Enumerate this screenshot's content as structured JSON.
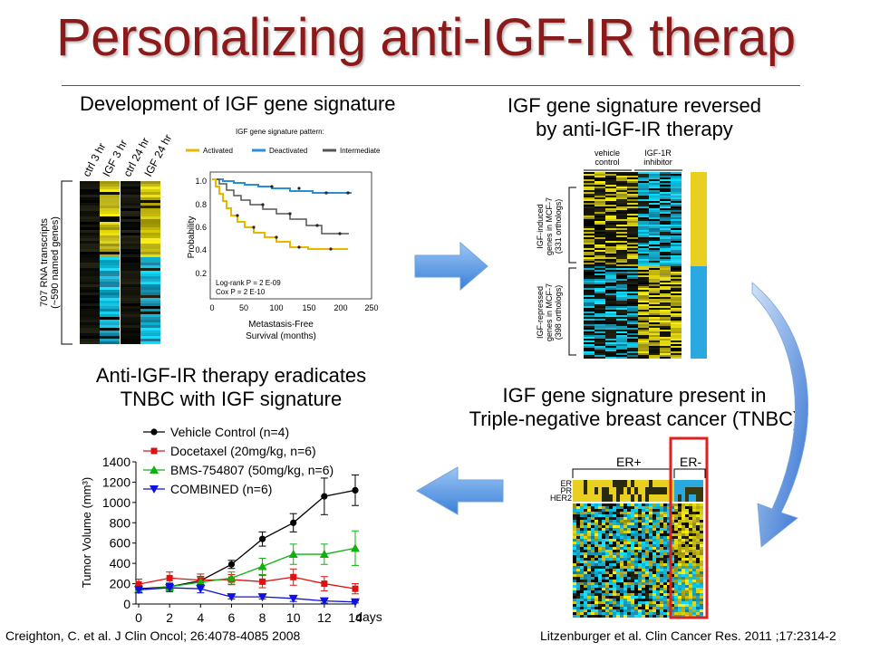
{
  "slide": {
    "title": "Personalizing anti-IGF-IR therap",
    "q1_caption": "Development of IGF gene signature",
    "q2_caption_line1": "IGF gene signature reversed",
    "q2_caption_line2": "by anti-IGF-IR therapy",
    "q3_caption_line1": "IGF gene signature present in",
    "q3_caption_line2": "Triple-negative breast cancer (TNBC)",
    "q4_caption_line1": "Anti-IGF-IR therapy eradicates",
    "q4_caption_line2": "TNBC with IGF signature",
    "citation_left": "Creighton, C. et al. J Clin Oncol; 26:4078-4085 2008",
    "citation_right": "Litzenburger et al. Clin Cancer Res. 2011 ;17:2314-2"
  },
  "heatmap1": {
    "column_labels": [
      "ctrl 3 hr",
      "IGF 3 hr",
      "ctrl 24 hr",
      "IGF 24 hr"
    ],
    "row_label_line1": "707 RNA transcripts",
    "row_label_line2": "(~590 named genes)"
  },
  "survival": {
    "legend_title": "IGF gene signature pattern:",
    "legend_items": [
      "Activated",
      "Deactivated",
      "Intermediate"
    ],
    "colors": {
      "activated": "#e8b800",
      "deactivated": "#2a8fd6",
      "intermediate": "#555555"
    },
    "ylabel": "Probability",
    "xlabel_line1": "Metastasis-Free",
    "xlabel_line2": "Survival (months)",
    "y_ticks": [
      "1.0",
      "0.8",
      "0.6",
      "0.4",
      "0.2"
    ],
    "x_ticks": [
      "0",
      "50",
      "100",
      "150",
      "200",
      "250"
    ],
    "stat_line1": "Log-rank P = 2 E-09",
    "stat_line2": "Cox P = 2 E-10"
  },
  "heatmap2": {
    "header_vehicle_line1": "vehicle",
    "header_vehicle_line2": "control",
    "header_inhibitor_line1": "IGF-1R",
    "header_inhibitor_line2": "inhibitor",
    "induced_line1": "IGF-induced",
    "induced_line2": "genes in MCF-7",
    "induced_line3": "(331 orthologs)",
    "repressed_line1": "IGF-repressed",
    "repressed_line2": "genes in MCF-7",
    "repressed_line3": "(398 orthologs)"
  },
  "heatmap3": {
    "er_pos": "ER+",
    "er_neg": "ER-",
    "row_labels": [
      "ER",
      "PR",
      "HER2"
    ]
  },
  "chart_data": {
    "type": "line",
    "title": "",
    "xlabel": "days",
    "ylabel": "Tumor Volume (mm³)",
    "ylim": [
      0,
      1400
    ],
    "xlim": [
      0,
      14
    ],
    "x": [
      0,
      2,
      4,
      6,
      8,
      10,
      12,
      14
    ],
    "y_ticks": [
      0,
      200,
      400,
      600,
      800,
      1000,
      1200,
      1400
    ],
    "legend_position": "top-left",
    "series": [
      {
        "name": "Vehicle Control (n=4)",
        "color": "#000000",
        "marker": "circle",
        "values": [
          150,
          170,
          230,
          390,
          640,
          800,
          1060,
          1120
        ],
        "errors": [
          30,
          30,
          40,
          40,
          70,
          90,
          180,
          150
        ]
      },
      {
        "name": "Docetaxel (20mg/kg, n=6)",
        "color": "#e01010",
        "marker": "square",
        "values": [
          195,
          255,
          235,
          240,
          220,
          265,
          200,
          150
        ],
        "errors": [
          50,
          60,
          60,
          50,
          60,
          80,
          70,
          50
        ]
      },
      {
        "name": "BMS-754807 (50mg/kg, n=6)",
        "color": "#10b010",
        "marker": "triangle",
        "values": [
          140,
          170,
          215,
          255,
          370,
          490,
          490,
          550
        ],
        "errors": [
          30,
          40,
          50,
          60,
          80,
          100,
          100,
          170
        ]
      },
      {
        "name": "COMBINED (n=6)",
        "color": "#1010e0",
        "marker": "triangle-down",
        "values": [
          140,
          160,
          150,
          70,
          70,
          55,
          30,
          20
        ],
        "errors": [
          30,
          40,
          40,
          20,
          20,
          30,
          20,
          10
        ]
      }
    ]
  }
}
